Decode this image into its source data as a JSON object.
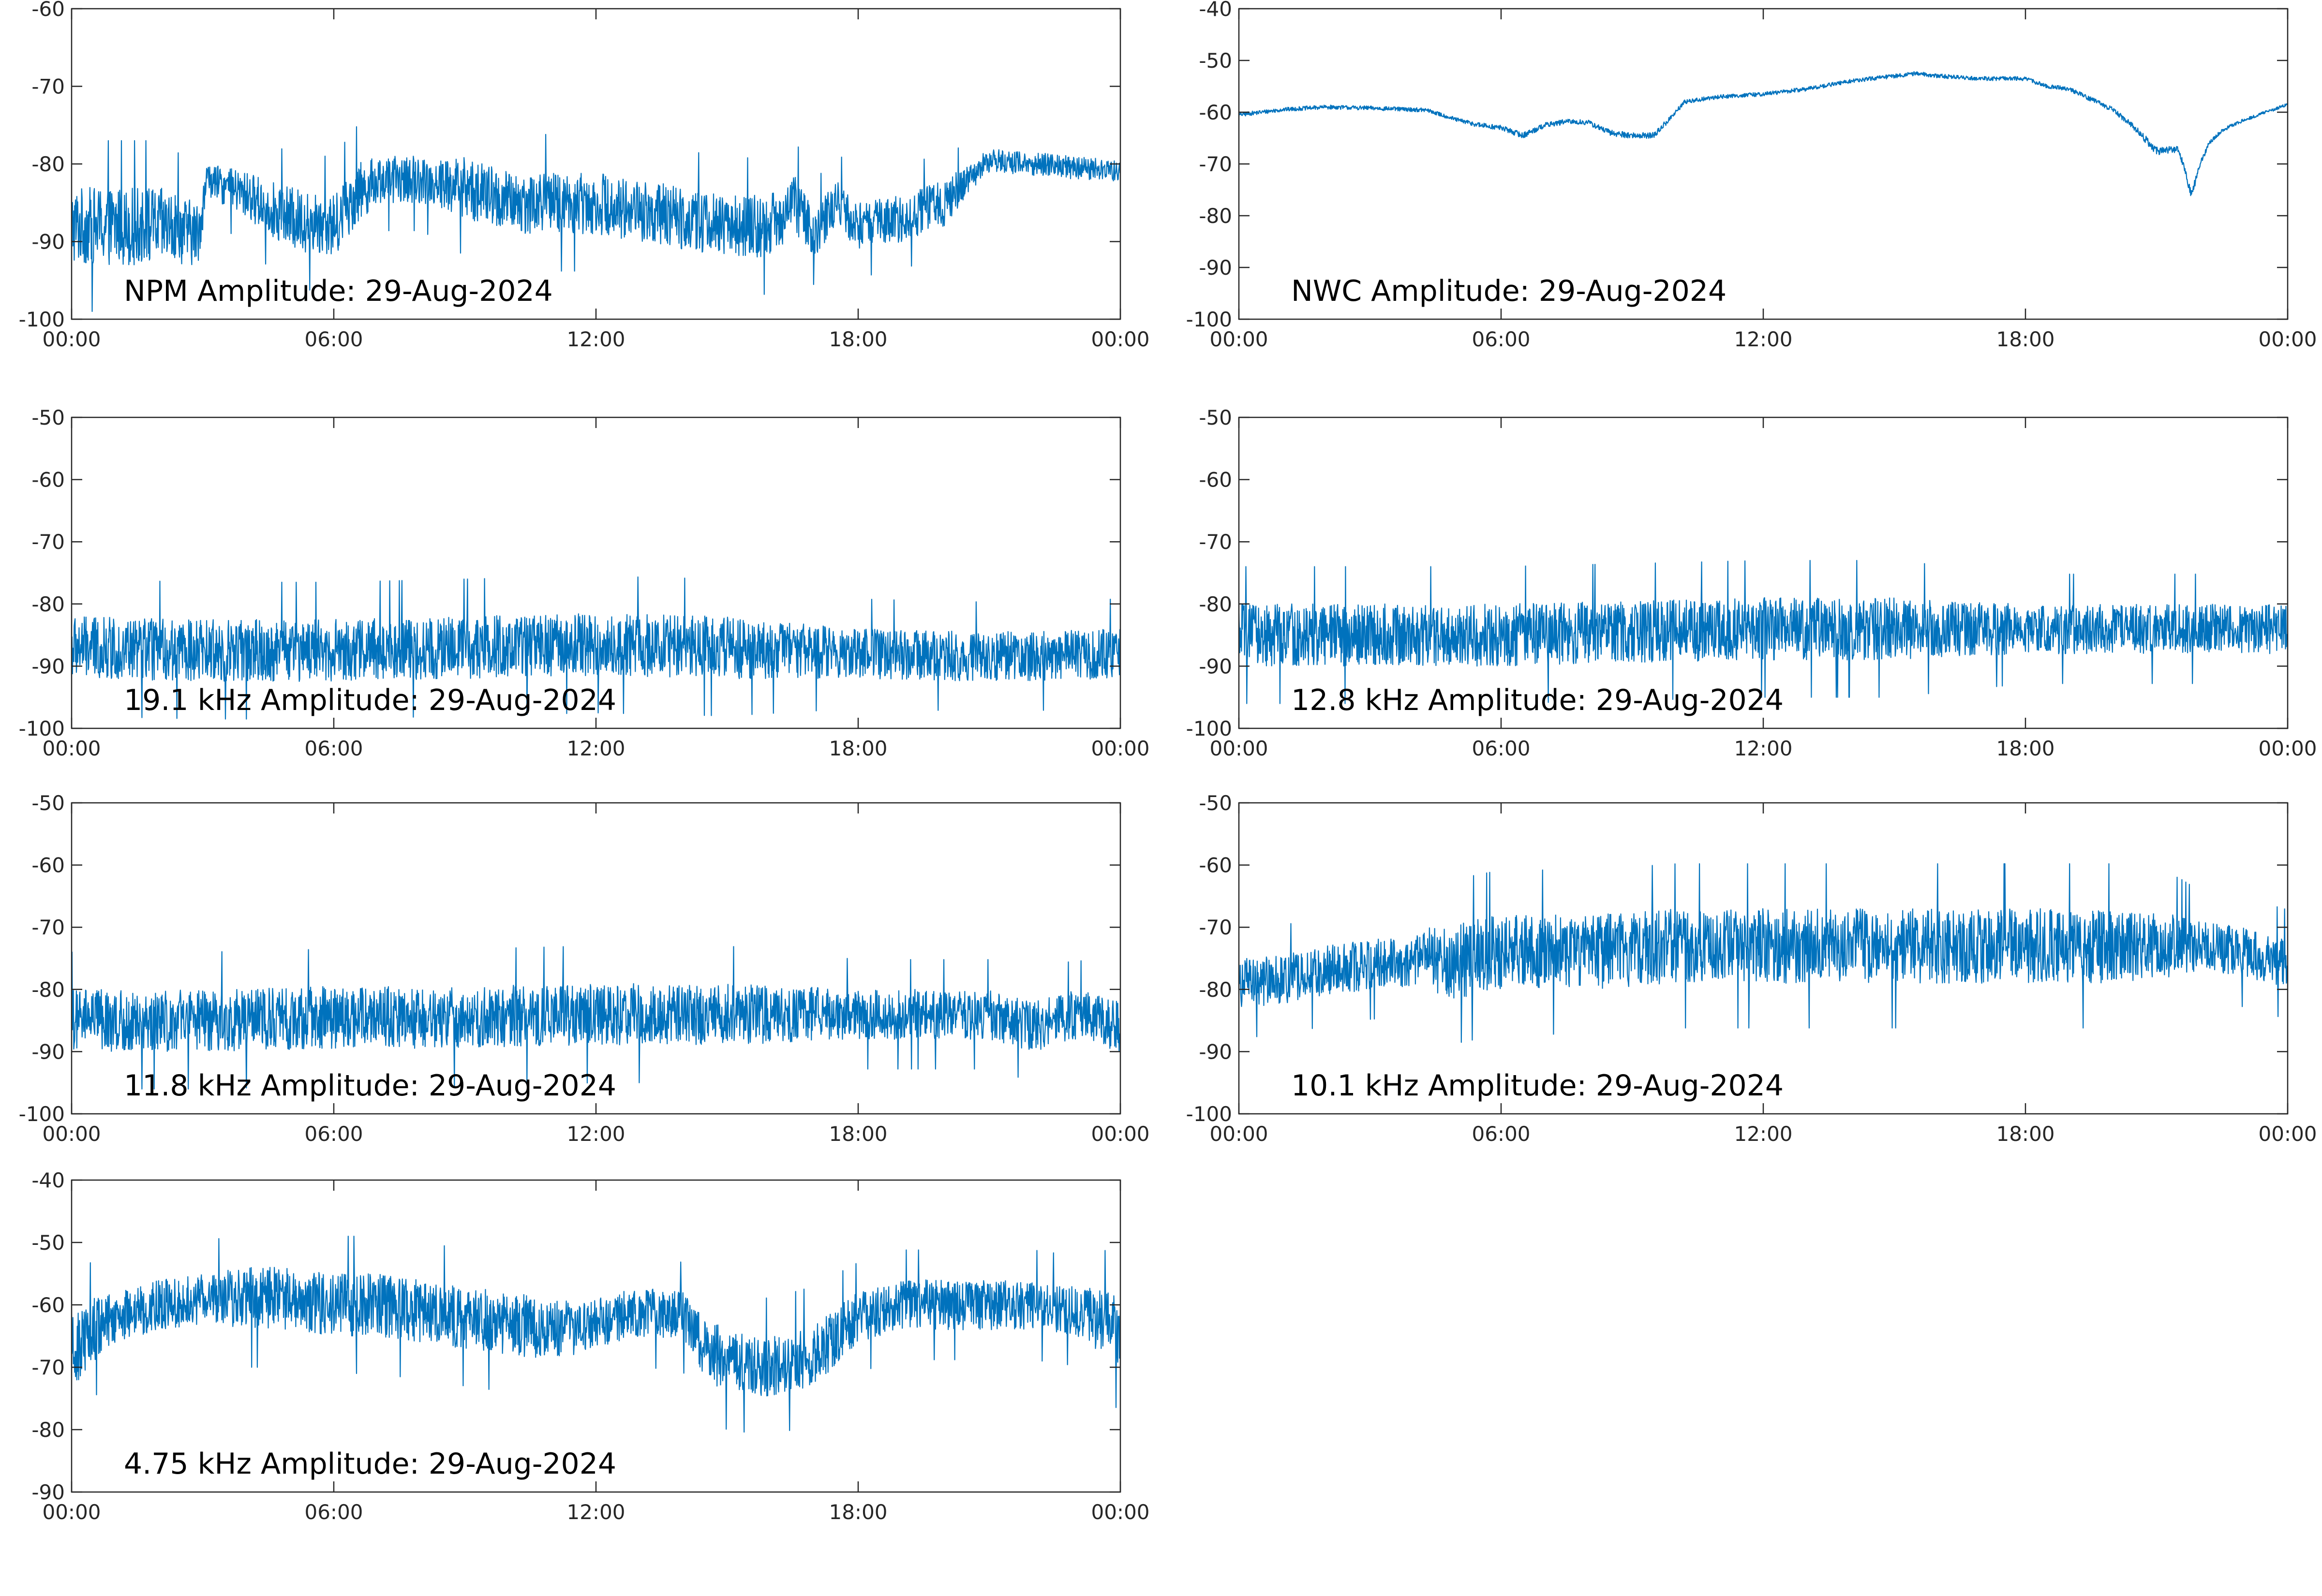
{
  "colors": {
    "series": "#0072BD",
    "axis": "#262626",
    "background": "#ffffff"
  },
  "chart_data": [
    {
      "type": "line",
      "title": "NPM Amplitude: 29-Aug-2024",
      "x_ticks": [
        "00:00",
        "06:00",
        "12:00",
        "18:00",
        "00:00"
      ],
      "y_ticks": [
        "-60",
        "-70",
        "-80",
        "-90",
        "-100"
      ],
      "xlim": [
        "00:00",
        "24:00"
      ],
      "ylim": [
        -100,
        -60
      ],
      "series": [
        {
          "x_hours": [
            0,
            1,
            2,
            2.9,
            3.1,
            4,
            5,
            6,
            6.5,
            7,
            8,
            9,
            10,
            11,
            12,
            13,
            14,
            15,
            16,
            16.5,
            17,
            17.5,
            18,
            19,
            20,
            20.5,
            21,
            22,
            23,
            24
          ],
          "center": [
            -88,
            -88,
            -88,
            -89,
            -82,
            -84,
            -87,
            -88,
            -84,
            -82,
            -82,
            -83,
            -85,
            -85,
            -85,
            -86,
            -87,
            -88,
            -88,
            -85,
            -89,
            -85,
            -88,
            -87,
            -85,
            -82,
            -79.5,
            -80,
            -80.5,
            -81
          ],
          "spread": [
            5,
            5,
            5,
            4,
            2,
            3,
            4,
            4,
            4,
            3,
            3,
            4,
            4,
            4,
            4,
            4,
            4,
            4,
            4,
            4,
            3,
            3,
            3,
            3,
            3,
            2,
            1.5,
            1.5,
            1.5,
            1.5
          ]
        }
      ]
    },
    {
      "type": "line",
      "title": "NWC Amplitude: 29-Aug-2024",
      "x_ticks": [
        "00:00",
        "06:00",
        "12:00",
        "18:00",
        "00:00"
      ],
      "y_ticks": [
        "-40",
        "-50",
        "-60",
        "-70",
        "-80",
        "-90",
        "-100"
      ],
      "xlim": [
        "00:00",
        "24:00"
      ],
      "ylim": [
        -100,
        -40
      ],
      "series": [
        {
          "x_hours": [
            0,
            1,
            2,
            3,
            4.3,
            5,
            5.5,
            6,
            6.5,
            7,
            7.5,
            8,
            8.5,
            9,
            9.5,
            10,
            10.2,
            11,
            12,
            13,
            14,
            15,
            15.5,
            16,
            17,
            18,
            18.5,
            19,
            20,
            20.5,
            21,
            21.5,
            21.8,
            22,
            22.2,
            22.5,
            23,
            24
          ],
          "center": [
            -60.5,
            -59.5,
            -59,
            -59.2,
            -59.6,
            -61.5,
            -62.5,
            -63,
            -64.5,
            -62.5,
            -61.8,
            -62,
            -64,
            -64.5,
            -64.5,
            -60,
            -58,
            -57,
            -56.5,
            -55.5,
            -54,
            -53,
            -52.5,
            -53,
            -53.5,
            -53.5,
            -55,
            -55.5,
            -59.5,
            -63,
            -67.5,
            -67,
            -76,
            -70,
            -66,
            -63.5,
            -61.5,
            -58.5
          ],
          "spread": [
            0.4,
            0.4,
            0.4,
            0.4,
            0.4,
            0.4,
            0.5,
            0.5,
            0.6,
            0.5,
            0.5,
            0.5,
            0.6,
            0.6,
            0.6,
            0.5,
            0.4,
            0.4,
            0.4,
            0.4,
            0.4,
            0.4,
            0.4,
            0.4,
            0.4,
            0.4,
            0.4,
            0.4,
            0.5,
            0.6,
            0.8,
            0.7,
            0.8,
            0.6,
            0.4,
            0.4,
            0.3,
            0.3
          ]
        }
      ]
    },
    {
      "type": "line",
      "title": "19.1 kHz Amplitude: 29-Aug-2024",
      "x_ticks": [
        "00:00",
        "06:00",
        "12:00",
        "18:00",
        "00:00"
      ],
      "y_ticks": [
        "-50",
        "-60",
        "-70",
        "-80",
        "-90",
        "-100"
      ],
      "xlim": [
        "00:00",
        "24:00"
      ],
      "ylim": [
        -100,
        -50
      ],
      "series": [
        {
          "x_hours": [
            0,
            3,
            6,
            9,
            12,
            15,
            18,
            21,
            24
          ],
          "center": [
            -87,
            -87.5,
            -87.5,
            -87,
            -86.5,
            -87,
            -88,
            -88.5,
            -88
          ],
          "spread": [
            5,
            5,
            5,
            5,
            5,
            5,
            4,
            4,
            4
          ]
        }
      ]
    },
    {
      "type": "line",
      "title": "12.8 kHz Amplitude: 29-Aug-2024",
      "x_ticks": [
        "00:00",
        "06:00",
        "12:00",
        "18:00",
        "00:00"
      ],
      "y_ticks": [
        "-50",
        "-60",
        "-70",
        "-80",
        "-90",
        "-100"
      ],
      "xlim": [
        "00:00",
        "24:00"
      ],
      "ylim": [
        -100,
        -50
      ],
      "series": [
        {
          "x_hours": [
            0,
            3,
            6,
            9,
            12,
            15,
            18,
            21,
            24
          ],
          "center": [
            -85,
            -85,
            -85,
            -84.5,
            -84,
            -84,
            -84,
            -84,
            -84
          ],
          "spread": [
            5,
            5,
            5,
            5,
            5,
            5,
            4,
            4,
            4
          ]
        }
      ]
    },
    {
      "type": "line",
      "title": "11.8 kHz Amplitude: 29-Aug-2024",
      "x_ticks": [
        "00:00",
        "06:00",
        "12:00",
        "18:00",
        "00:00"
      ],
      "y_ticks": [
        "-50",
        "-60",
        "-70",
        "-80",
        "-90",
        "-100"
      ],
      "xlim": [
        "00:00",
        "24:00"
      ],
      "ylim": [
        -100,
        -50
      ],
      "series": [
        {
          "x_hours": [
            0,
            3,
            6,
            9,
            12,
            15,
            18,
            21,
            22,
            23,
            24
          ],
          "center": [
            -85,
            -85,
            -84.5,
            -84.5,
            -84,
            -84,
            -84,
            -84,
            -86,
            -84,
            -86
          ],
          "spread": [
            5,
            5,
            5,
            5,
            5,
            5,
            4,
            4,
            4,
            4,
            4
          ]
        }
      ]
    },
    {
      "type": "line",
      "title": "10.1 kHz Amplitude: 29-Aug-2024",
      "x_ticks": [
        "00:00",
        "06:00",
        "12:00",
        "18:00",
        "00:00"
      ],
      "y_ticks": [
        "-50",
        "-60",
        "-70",
        "-80",
        "-90",
        "-100"
      ],
      "xlim": [
        "00:00",
        "24:00"
      ],
      "ylim": [
        -100,
        -50
      ],
      "series": [
        {
          "x_hours": [
            0,
            1,
            2,
            3,
            4,
            4.3,
            4.6,
            6,
            8,
            10,
            12,
            14,
            16,
            18,
            20,
            21.5,
            22,
            23,
            24
          ],
          "center": [
            -79,
            -78.5,
            -77,
            -76,
            -75.5,
            -74,
            -76,
            -74,
            -74,
            -73,
            -73,
            -73,
            -73,
            -73,
            -73,
            -73,
            -73,
            -74,
            -76
          ],
          "spread": [
            4,
            4,
            4,
            4,
            4,
            4,
            6,
            6,
            6,
            6,
            6,
            6,
            6,
            6,
            6,
            5,
            4,
            4,
            4
          ]
        }
      ]
    },
    {
      "type": "line",
      "title": "4.75 kHz Amplitude: 29-Aug-2024",
      "x_ticks": [
        "00:00",
        "06:00",
        "12:00",
        "18:00",
        "00:00"
      ],
      "y_ticks": [
        "-40",
        "-50",
        "-60",
        "-70",
        "-80",
        "-90"
      ],
      "xlim": [
        "00:00",
        "24:00"
      ],
      "ylim": [
        -90,
        -40
      ],
      "series": [
        {
          "x_hours": [
            0,
            0.5,
            1,
            2,
            3,
            4,
            5,
            6,
            7,
            8,
            9,
            10,
            11,
            12,
            13,
            14,
            14.5,
            15,
            16,
            17,
            18,
            19,
            20,
            21,
            22,
            23,
            24
          ],
          "center": [
            -68,
            -64,
            -62,
            -60,
            -59,
            -59,
            -59,
            -60,
            -60,
            -61,
            -62,
            -63,
            -64,
            -63,
            -61,
            -62,
            -67,
            -69,
            -70,
            -68,
            -62,
            -60,
            -60,
            -60,
            -60,
            -61,
            -64
          ],
          "spread": [
            6,
            5,
            4,
            4,
            4,
            5,
            5,
            5,
            5,
            5,
            5,
            5,
            5,
            4,
            4,
            4,
            5,
            5,
            5,
            5,
            4,
            4,
            4,
            4,
            4,
            4,
            6
          ]
        }
      ]
    }
  ]
}
